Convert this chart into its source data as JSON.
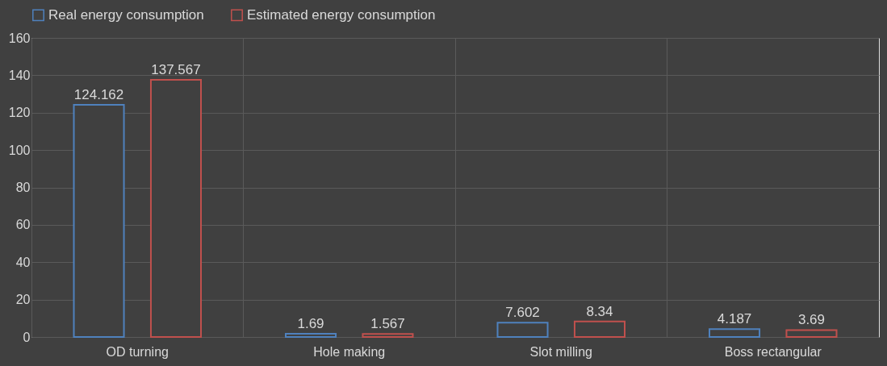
{
  "chart_data": {
    "type": "bar",
    "categories": [
      "OD turning",
      "Hole making",
      "Slot milling",
      "Boss rectangular"
    ],
    "series": [
      {
        "name": "Real energy consumption",
        "color": "#4f81bd",
        "values": [
          124.162,
          1.69,
          7.602,
          4.187
        ]
      },
      {
        "name": "Estimated energy consumption",
        "color": "#c0504d",
        "values": [
          137.567,
          1.567,
          8.34,
          3.69
        ]
      }
    ],
    "ylim": [
      0,
      160
    ],
    "yticks": [
      0,
      20,
      40,
      60,
      80,
      100,
      120,
      140,
      160
    ],
    "grid": true,
    "legend": "top",
    "data_labels": true
  }
}
